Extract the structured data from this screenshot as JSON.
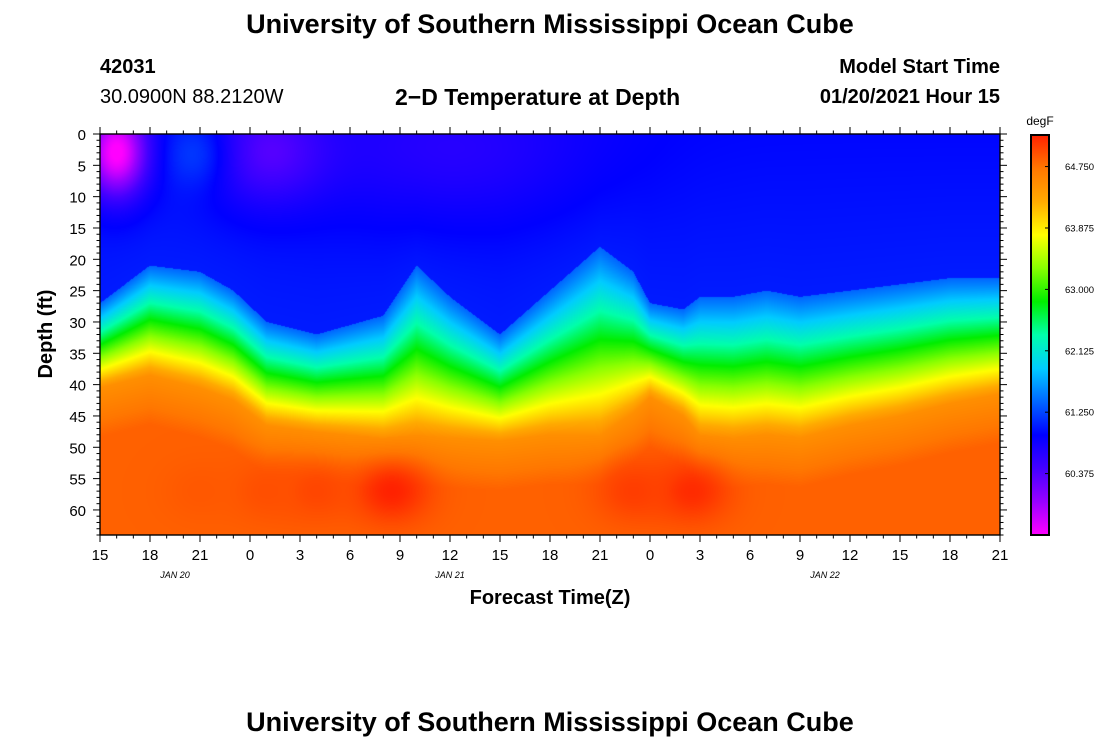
{
  "header": {
    "title": "University of Southern Mississippi Ocean Cube",
    "station_id": "42031",
    "coordinates": "30.0900N 88.2120W",
    "subtitle": "2−D Temperature at Depth",
    "model_start_label": "Model Start Time",
    "model_start_value": "01/20/2021 Hour 15"
  },
  "footer": {
    "title": "University of Southern Mississippi Ocean Cube"
  },
  "chart_data": {
    "type": "heatmap",
    "title": "2−D Temperature at Depth",
    "xlabel": "Forecast Time(Z)",
    "ylabel": "Depth (ft)",
    "x_tick_labels": [
      "15",
      "18",
      "21",
      "0",
      "3",
      "6",
      "9",
      "12",
      "15",
      "18",
      "21",
      "0",
      "3",
      "6",
      "9",
      "12",
      "15",
      "18",
      "21"
    ],
    "x_range_hours": [
      0,
      54
    ],
    "x_tick_step_hours": 3,
    "date_labels": [
      {
        "text": "JAN  20",
        "hour": 4.5
      },
      {
        "text": "JAN  21",
        "hour": 21
      },
      {
        "text": "JAN  22",
        "hour": 43.5
      }
    ],
    "y_range": [
      0,
      64
    ],
    "y_ticks": [
      0,
      5,
      10,
      15,
      20,
      25,
      30,
      35,
      40,
      45,
      50,
      55,
      60
    ],
    "colorbar": {
      "unit": "degF",
      "range": [
        59.5,
        65.2
      ],
      "tick_values": [
        60.375,
        61.25,
        62.125,
        63.0,
        63.875,
        64.75
      ],
      "tick_labels": [
        "60.375",
        "61.250",
        "62.125",
        "63.000",
        "63.875",
        "64.750"
      ],
      "colors": [
        "#ff00ff",
        "#9900ff",
        "#4400ff",
        "#0000ff",
        "#0066ff",
        "#00ccff",
        "#00ffaa",
        "#00ee00",
        "#88ff00",
        "#ffff00",
        "#ffaa00",
        "#ff7700",
        "#ff2200"
      ]
    },
    "profile": {
      "hours": [
        0,
        3,
        6,
        8,
        10,
        13,
        17,
        19,
        21,
        24,
        27,
        30,
        32,
        33,
        35,
        36,
        38,
        40,
        42,
        45,
        48,
        51,
        54
      ],
      "thermocline_ft": [
        40.5,
        38.5,
        40.5,
        42.5,
        46.5,
        47.5,
        48.5,
        48,
        48.5,
        49,
        48,
        48,
        44.5,
        42,
        45,
        48,
        48.5,
        48,
        48.5,
        46.5,
        45,
        43,
        41.5
      ],
      "upper_edge_ft": [
        27,
        21,
        22,
        25,
        30,
        32,
        29,
        21,
        26,
        32,
        25,
        18,
        22,
        27,
        28,
        26,
        26,
        25,
        26,
        25,
        24,
        23,
        23
      ]
    },
    "warm_cores": [
      {
        "hour": 17.5,
        "depth_ft": 57,
        "peak_degF": 65.2
      },
      {
        "hour": 35.5,
        "depth_ft": 57,
        "peak_degF": 65.15
      },
      {
        "hour": 32,
        "depth_ft": 57,
        "peak_degF": 65.05
      },
      {
        "hour": 13,
        "depth_ft": 57,
        "peak_degF": 65.0
      },
      {
        "hour": 10,
        "depth_ft": 57,
        "peak_degF": 64.95
      },
      {
        "hour": 6,
        "depth_ft": 57,
        "peak_degF": 64.9
      }
    ],
    "cold_spots": [
      {
        "hour": 1,
        "depth_ft": 3,
        "min_degF": 59.5
      },
      {
        "hour": 6,
        "depth_ft": 3,
        "min_degF": 61.25
      }
    ]
  }
}
